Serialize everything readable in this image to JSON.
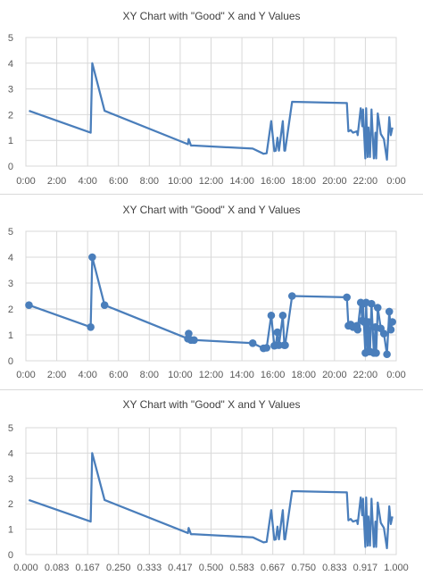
{
  "colors": {
    "series": "#4a7ebb",
    "grid": "#d9d9d9",
    "text": "#595959"
  },
  "chart_data": [
    {
      "type": "line",
      "title": "XY Chart with \"Good\" X and Y Values",
      "markers": false,
      "grid": true,
      "ylim": [
        0,
        5
      ],
      "xlim": [
        0,
        1
      ],
      "yticks": [
        "0",
        "1",
        "2",
        "3",
        "4",
        "5"
      ],
      "xticks": [
        "0:00",
        "2:00",
        "4:00",
        "6:00",
        "8:00",
        "10:00",
        "12:00",
        "14:00",
        "16:00",
        "18:00",
        "20:00",
        "22:00",
        "0:00"
      ],
      "series": [
        {
          "x": [
            0.2,
            4.2,
            4.3,
            5.1,
            10.5,
            10.55,
            10.7,
            10.9,
            14.7,
            15.4,
            15.6,
            15.9,
            16.1,
            16.2,
            16.3,
            16.4,
            16.65,
            16.75,
            16.8,
            17.25,
            20.8,
            20.9,
            21.05,
            21.2,
            21.45,
            21.5,
            21.7,
            21.8,
            21.85,
            21.9,
            22.0,
            22.05,
            22.15,
            22.2,
            22.3,
            22.4,
            22.55,
            22.65,
            22.7,
            22.8,
            23.0,
            23.2,
            23.4,
            23.55,
            23.65,
            23.75
          ],
          "y": [
            2.15,
            1.3,
            4.0,
            2.15,
            0.85,
            1.05,
            0.8,
            0.8,
            0.68,
            0.48,
            0.5,
            1.75,
            0.58,
            0.6,
            1.1,
            0.6,
            1.75,
            0.6,
            0.6,
            2.5,
            2.45,
            1.35,
            1.4,
            1.3,
            1.35,
            1.2,
            2.25,
            1.55,
            2.2,
            1.5,
            0.3,
            2.25,
            0.35,
            1.5,
            0.35,
            2.2,
            0.3,
            1.3,
            0.3,
            2.05,
            1.25,
            1.05,
            0.25,
            1.9,
            1.2,
            1.5
          ]
        }
      ]
    },
    {
      "type": "line",
      "title": "XY Chart with \"Good\" X and Y Values",
      "markers": true,
      "grid": true,
      "ylim": [
        0,
        5
      ],
      "xlim": [
        0,
        1
      ],
      "yticks": [
        "0",
        "1",
        "2",
        "3",
        "4",
        "5"
      ],
      "xticks": [
        "0:00",
        "2:00",
        "4:00",
        "6:00",
        "8:00",
        "10:00",
        "12:00",
        "14:00",
        "16:00",
        "18:00",
        "20:00",
        "22:00",
        "0:00"
      ],
      "series": [
        {
          "x": [
            0.2,
            4.2,
            4.3,
            5.1,
            10.5,
            10.55,
            10.7,
            10.9,
            14.7,
            15.4,
            15.6,
            15.9,
            16.1,
            16.2,
            16.3,
            16.4,
            16.65,
            16.75,
            16.8,
            17.25,
            20.8,
            20.9,
            21.05,
            21.2,
            21.45,
            21.5,
            21.7,
            21.8,
            21.85,
            21.9,
            22.0,
            22.05,
            22.15,
            22.2,
            22.3,
            22.4,
            22.55,
            22.65,
            22.7,
            22.8,
            23.0,
            23.2,
            23.4,
            23.55,
            23.65,
            23.75
          ],
          "y": [
            2.15,
            1.3,
            4.0,
            2.15,
            0.85,
            1.05,
            0.8,
            0.8,
            0.68,
            0.48,
            0.5,
            1.75,
            0.58,
            0.6,
            1.1,
            0.6,
            1.75,
            0.6,
            0.6,
            2.5,
            2.45,
            1.35,
            1.4,
            1.3,
            1.35,
            1.2,
            2.25,
            1.55,
            2.2,
            1.5,
            0.3,
            2.25,
            0.35,
            1.5,
            0.35,
            2.2,
            0.3,
            1.3,
            0.3,
            2.05,
            1.25,
            1.05,
            0.25,
            1.9,
            1.2,
            1.5
          ]
        }
      ]
    },
    {
      "type": "line",
      "title": "XY Chart with \"Good\" X and Y Values",
      "markers": false,
      "grid": true,
      "ylim": [
        0,
        5
      ],
      "xlim": [
        0,
        1
      ],
      "yticks": [
        "0",
        "1",
        "2",
        "3",
        "4",
        "5"
      ],
      "xticks": [
        "0.000",
        "0.083",
        "0.167",
        "0.250",
        "0.333",
        "0.417",
        "0.500",
        "0.583",
        "0.667",
        "0.750",
        "0.833",
        "0.917",
        "1.000"
      ],
      "series": [
        {
          "x": [
            0.008,
            0.175,
            0.179,
            0.2125,
            0.4375,
            0.4396,
            0.4458,
            0.4542,
            0.6125,
            0.6417,
            0.65,
            0.6625,
            0.6708,
            0.675,
            0.6792,
            0.6833,
            0.6938,
            0.6979,
            0.7,
            0.7188,
            0.8667,
            0.8708,
            0.8771,
            0.8833,
            0.8938,
            0.8958,
            0.9042,
            0.9083,
            0.9104,
            0.9125,
            0.9167,
            0.9188,
            0.9229,
            0.925,
            0.9292,
            0.9333,
            0.9396,
            0.9438,
            0.9458,
            0.95,
            0.9583,
            0.9667,
            0.975,
            0.9813,
            0.9854,
            0.9896
          ],
          "y": [
            2.15,
            1.3,
            4.0,
            2.15,
            0.85,
            1.05,
            0.8,
            0.8,
            0.68,
            0.48,
            0.5,
            1.75,
            0.58,
            0.6,
            1.1,
            0.6,
            1.75,
            0.6,
            0.6,
            2.5,
            2.45,
            1.35,
            1.4,
            1.3,
            1.35,
            1.2,
            2.25,
            1.55,
            2.2,
            1.5,
            0.3,
            2.25,
            0.35,
            1.5,
            0.35,
            2.2,
            0.3,
            1.3,
            0.3,
            2.05,
            1.25,
            1.05,
            0.25,
            1.9,
            1.2,
            1.5
          ]
        }
      ]
    }
  ]
}
